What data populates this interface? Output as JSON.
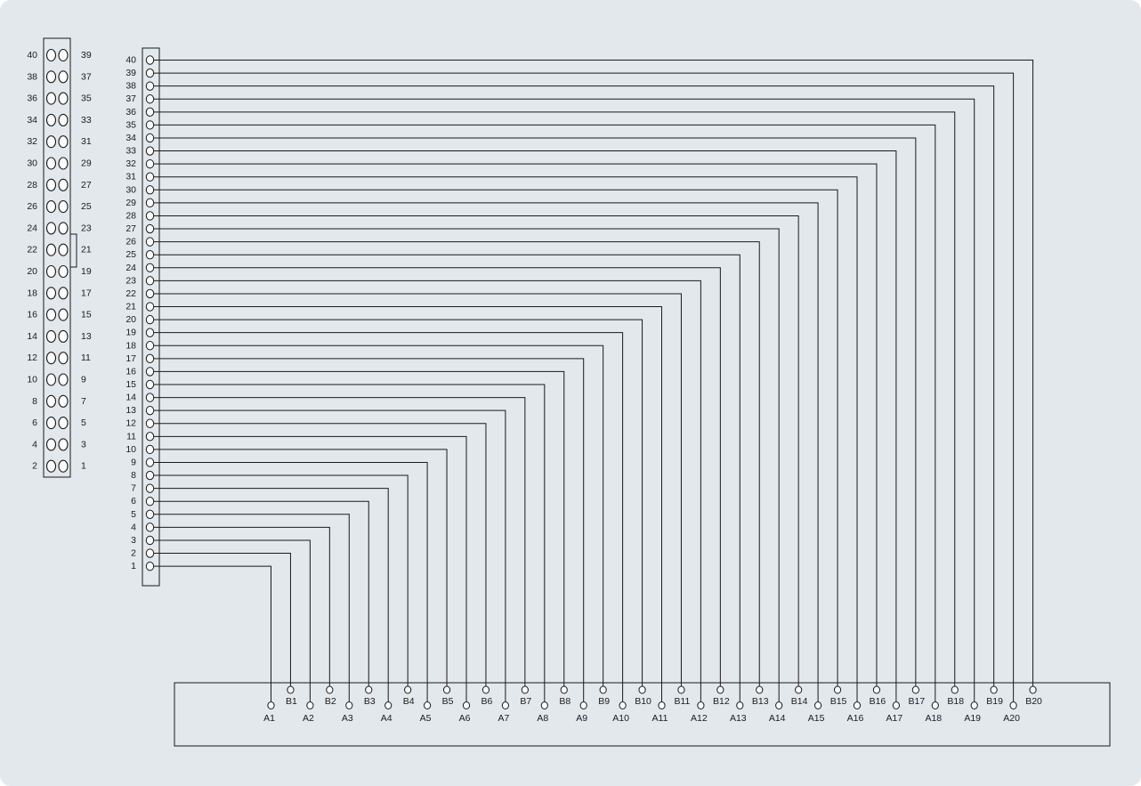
{
  "header_connector": {
    "left_column_labels": [
      "40",
      "38",
      "36",
      "34",
      "32",
      "30",
      "28",
      "26",
      "24",
      "22",
      "20",
      "18",
      "16",
      "14",
      "12",
      "10",
      "8",
      "6",
      "4",
      "2"
    ],
    "right_column_labels": [
      "39",
      "37",
      "35",
      "33",
      "31",
      "29",
      "27",
      "25",
      "23",
      "21",
      "19",
      "17",
      "15",
      "13",
      "11",
      "9",
      "7",
      "5",
      "3",
      "1"
    ]
  },
  "strip_connector": {
    "pin_labels": [
      "40",
      "39",
      "38",
      "37",
      "36",
      "35",
      "34",
      "33",
      "32",
      "31",
      "30",
      "29",
      "28",
      "27",
      "26",
      "25",
      "24",
      "23",
      "22",
      "21",
      "20",
      "19",
      "18",
      "17",
      "16",
      "15",
      "14",
      "13",
      "12",
      "11",
      "10",
      "9",
      "8",
      "7",
      "6",
      "5",
      "4",
      "3",
      "2",
      "1"
    ]
  },
  "edge_connector": {
    "a_labels": [
      "A1",
      "A2",
      "A3",
      "A4",
      "A5",
      "A6",
      "A7",
      "A8",
      "A9",
      "A10",
      "A11",
      "A12",
      "A13",
      "A14",
      "A15",
      "A16",
      "A17",
      "A18",
      "A19",
      "A20"
    ],
    "b_labels": [
      "B1",
      "B2",
      "B3",
      "B4",
      "B5",
      "B6",
      "B7",
      "B8",
      "B9",
      "B10",
      "B11",
      "B12",
      "B13",
      "B14",
      "B15",
      "B16",
      "B17",
      "B18",
      "B19",
      "B20"
    ]
  }
}
